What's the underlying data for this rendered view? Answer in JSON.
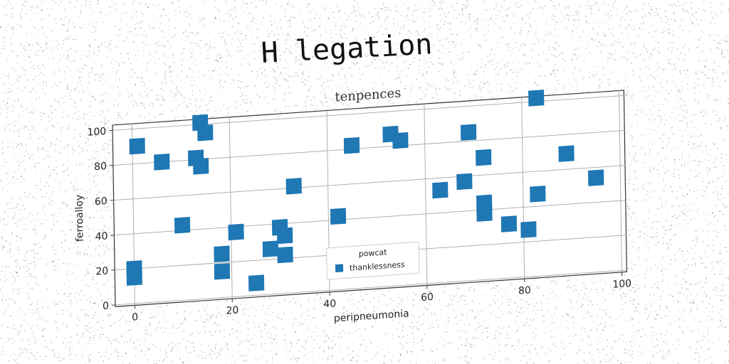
{
  "page": {
    "title": "H legation"
  },
  "chart_data": {
    "type": "scatter",
    "title": "tenpences",
    "xlabel": "peripneumonia",
    "ylabel": "ferroalloy",
    "xlim": [
      -4,
      101
    ],
    "ylim": [
      -1,
      103
    ],
    "xticks": [
      0,
      20,
      40,
      60,
      80,
      100
    ],
    "yticks": [
      0,
      20,
      40,
      60,
      80,
      100
    ],
    "grid": true,
    "legend": {
      "title": "powcat",
      "placement": "lower-center"
    },
    "series": [
      {
        "name": "thanklessness",
        "color": "#1f77b4",
        "marker": "square",
        "points": [
          [
            1,
            90
          ],
          [
            6,
            80
          ],
          [
            14,
            101
          ],
          [
            15,
            95
          ],
          [
            13,
            81
          ],
          [
            14,
            76
          ],
          [
            10,
            43
          ],
          [
            0,
            20
          ],
          [
            0,
            15
          ],
          [
            18,
            25
          ],
          [
            18,
            15
          ],
          [
            21,
            37
          ],
          [
            25,
            7
          ],
          [
            28,
            26
          ],
          [
            30,
            38
          ],
          [
            31,
            33
          ],
          [
            31,
            22
          ],
          [
            33,
            61
          ],
          [
            42,
            42
          ],
          [
            45,
            82
          ],
          [
            53,
            87
          ],
          [
            55,
            83
          ],
          [
            63,
            53
          ],
          [
            68,
            57
          ],
          [
            69,
            85
          ],
          [
            72,
            44
          ],
          [
            72,
            38
          ],
          [
            72,
            70
          ],
          [
            77,
            31
          ],
          [
            81,
            27
          ],
          [
            83,
            47
          ],
          [
            83,
            102
          ],
          [
            89,
            69
          ],
          [
            95,
            54
          ]
        ]
      }
    ]
  }
}
